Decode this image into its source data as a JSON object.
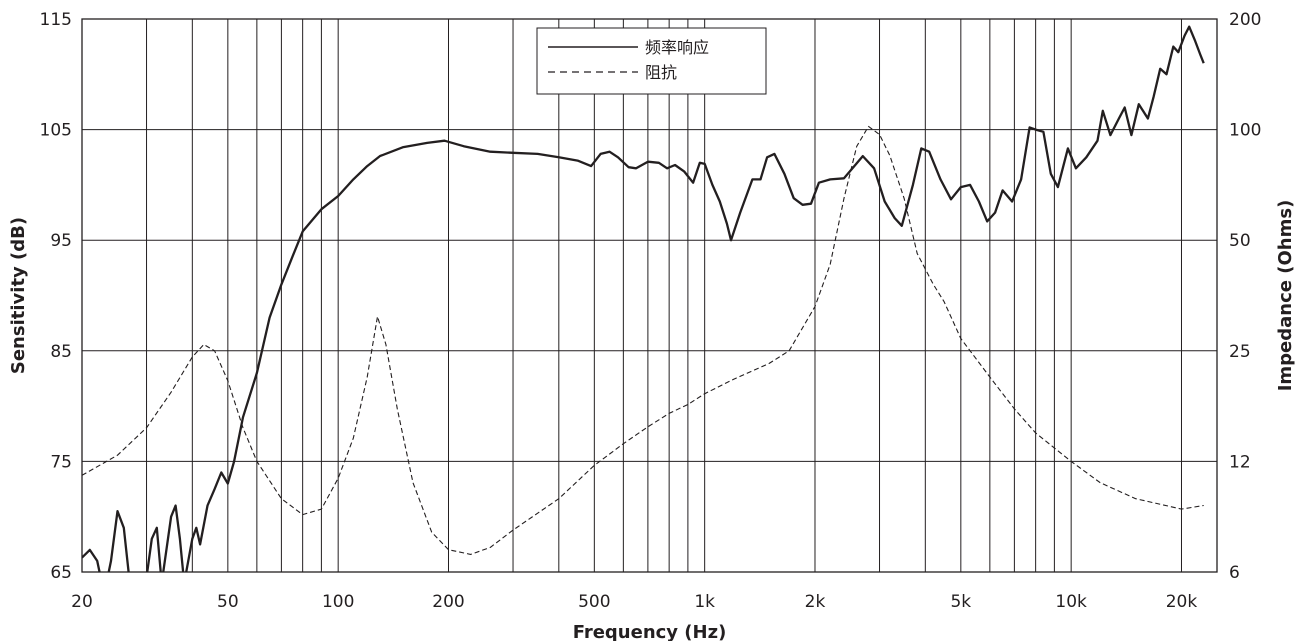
{
  "chart_data": {
    "type": "line",
    "xlabel": "Frequency (Hz)",
    "ylabel_left": "Sensitivity (dB)",
    "ylabel_right": "Impedance (Ohms)",
    "x_scale": "log",
    "xlim": [
      20,
      25000
    ],
    "ylim_left": [
      65,
      115
    ],
    "right_axis_ticks": [
      6,
      12,
      25,
      50,
      100,
      200
    ],
    "right_axis_scale": "log",
    "grid": true,
    "legend_position": "top-center",
    "x_ticks": [
      {
        "value": 20,
        "label": "20"
      },
      {
        "value": 50,
        "label": "50"
      },
      {
        "value": 100,
        "label": "100"
      },
      {
        "value": 200,
        "label": "200"
      },
      {
        "value": 500,
        "label": "500"
      },
      {
        "value": 1000,
        "label": "1k"
      },
      {
        "value": 2000,
        "label": "2k"
      },
      {
        "value": 5000,
        "label": "5k"
      },
      {
        "value": 10000,
        "label": "10k"
      },
      {
        "value": 20000,
        "label": "20k"
      }
    ],
    "y_left_ticks": [
      65,
      75,
      85,
      95,
      105,
      115
    ],
    "series": [
      {
        "name": "频率响应",
        "axis": "left",
        "style": "solid",
        "points": [
          [
            20,
            66.3
          ],
          [
            21,
            67
          ],
          [
            22,
            66
          ],
          [
            23,
            63
          ],
          [
            24,
            66
          ],
          [
            25,
            70.5
          ],
          [
            26,
            69
          ],
          [
            27,
            64
          ],
          [
            30,
            64.5
          ],
          [
            31,
            68
          ],
          [
            32,
            69
          ],
          [
            33,
            64
          ],
          [
            35,
            70
          ],
          [
            36,
            71
          ],
          [
            37,
            68
          ],
          [
            38,
            64
          ],
          [
            40,
            68
          ],
          [
            41,
            69
          ],
          [
            42,
            67.5
          ],
          [
            44,
            71
          ],
          [
            46,
            72.5
          ],
          [
            48,
            74
          ],
          [
            50,
            73
          ],
          [
            52,
            75
          ],
          [
            55,
            79
          ],
          [
            60,
            83
          ],
          [
            65,
            88
          ],
          [
            70,
            91
          ],
          [
            75,
            93.5
          ],
          [
            80,
            95.8
          ],
          [
            90,
            97.8
          ],
          [
            100,
            99
          ],
          [
            110,
            100.5
          ],
          [
            120,
            101.7
          ],
          [
            130,
            102.6
          ],
          [
            150,
            103.4
          ],
          [
            175,
            103.8
          ],
          [
            195,
            104
          ],
          [
            220,
            103.5
          ],
          [
            260,
            103
          ],
          [
            300,
            102.9
          ],
          [
            350,
            102.8
          ],
          [
            400,
            102.5
          ],
          [
            450,
            102.2
          ],
          [
            490,
            101.7
          ],
          [
            520,
            102.8
          ],
          [
            550,
            103
          ],
          [
            580,
            102.5
          ],
          [
            620,
            101.6
          ],
          [
            650,
            101.5
          ],
          [
            700,
            102.1
          ],
          [
            750,
            102
          ],
          [
            790,
            101.5
          ],
          [
            830,
            101.8
          ],
          [
            880,
            101.2
          ],
          [
            930,
            100.2
          ],
          [
            970,
            102
          ],
          [
            1000,
            101.9
          ],
          [
            1050,
            100
          ],
          [
            1100,
            98.5
          ],
          [
            1150,
            96.5
          ],
          [
            1180,
            95
          ],
          [
            1250,
            97.5
          ],
          [
            1350,
            100.5
          ],
          [
            1420,
            100.5
          ],
          [
            1480,
            102.5
          ],
          [
            1550,
            102.8
          ],
          [
            1650,
            101
          ],
          [
            1750,
            98.8
          ],
          [
            1850,
            98.2
          ],
          [
            1950,
            98.3
          ],
          [
            2050,
            100.2
          ],
          [
            2200,
            100.5
          ],
          [
            2400,
            100.6
          ],
          [
            2700,
            102.6
          ],
          [
            2900,
            101.5
          ],
          [
            3100,
            98.5
          ],
          [
            3300,
            97
          ],
          [
            3450,
            96.3
          ],
          [
            3700,
            100
          ],
          [
            3900,
            103.3
          ],
          [
            4100,
            103
          ],
          [
            4400,
            100.5
          ],
          [
            4700,
            98.7
          ],
          [
            5000,
            99.8
          ],
          [
            5300,
            100
          ],
          [
            5600,
            98.5
          ],
          [
            5900,
            96.7
          ],
          [
            6200,
            97.5
          ],
          [
            6500,
            99.5
          ],
          [
            6900,
            98.5
          ],
          [
            7300,
            100.5
          ],
          [
            7700,
            105.2
          ],
          [
            8000,
            105
          ],
          [
            8400,
            104.8
          ],
          [
            8800,
            101
          ],
          [
            9200,
            99.8
          ],
          [
            9800,
            103.3
          ],
          [
            10300,
            101.5
          ],
          [
            11000,
            102.5
          ],
          [
            11800,
            104
          ],
          [
            12200,
            106.7
          ],
          [
            12800,
            104.5
          ],
          [
            13500,
            106
          ],
          [
            14000,
            107
          ],
          [
            14600,
            104.5
          ],
          [
            15300,
            107.3
          ],
          [
            16200,
            106
          ],
          [
            16800,
            108
          ],
          [
            17500,
            110.5
          ],
          [
            18200,
            110
          ],
          [
            19000,
            112.5
          ],
          [
            19600,
            112
          ],
          [
            20400,
            113.5
          ],
          [
            21000,
            114.3
          ],
          [
            21800,
            113
          ],
          [
            22500,
            111.8
          ],
          [
            23000,
            111
          ]
        ]
      },
      {
        "name": "阻抗",
        "axis": "right",
        "style": "dashed",
        "points": [
          [
            20,
            11
          ],
          [
            25,
            12.5
          ],
          [
            30,
            15
          ],
          [
            35,
            19
          ],
          [
            40,
            24
          ],
          [
            43,
            26
          ],
          [
            46,
            25
          ],
          [
            50,
            20.5
          ],
          [
            55,
            15
          ],
          [
            60,
            12
          ],
          [
            70,
            9.5
          ],
          [
            80,
            8.6
          ],
          [
            90,
            8.9
          ],
          [
            100,
            10.8
          ],
          [
            110,
            14
          ],
          [
            120,
            21
          ],
          [
            128,
            31
          ],
          [
            135,
            26
          ],
          [
            145,
            17
          ],
          [
            160,
            10.5
          ],
          [
            180,
            7.7
          ],
          [
            200,
            6.9
          ],
          [
            230,
            6.7
          ],
          [
            260,
            7
          ],
          [
            300,
            7.8
          ],
          [
            400,
            9.5
          ],
          [
            500,
            11.7
          ],
          [
            600,
            13.5
          ],
          [
            700,
            15.1
          ],
          [
            800,
            16.5
          ],
          [
            900,
            17.5
          ],
          [
            1000,
            18.8
          ],
          [
            1200,
            20.7
          ],
          [
            1500,
            23
          ],
          [
            1700,
            25
          ],
          [
            2000,
            33
          ],
          [
            2200,
            43
          ],
          [
            2400,
            65
          ],
          [
            2600,
            90
          ],
          [
            2800,
            102
          ],
          [
            3000,
            97
          ],
          [
            3200,
            85
          ],
          [
            3500,
            65
          ],
          [
            3800,
            46
          ],
          [
            4200,
            38
          ],
          [
            4500,
            34
          ],
          [
            5000,
            27
          ],
          [
            6000,
            21
          ],
          [
            7000,
            17
          ],
          [
            8000,
            14.5
          ],
          [
            10000,
            12
          ],
          [
            12000,
            10.5
          ],
          [
            15000,
            9.5
          ],
          [
            20000,
            8.9
          ],
          [
            23000,
            9.1
          ]
        ]
      }
    ]
  }
}
